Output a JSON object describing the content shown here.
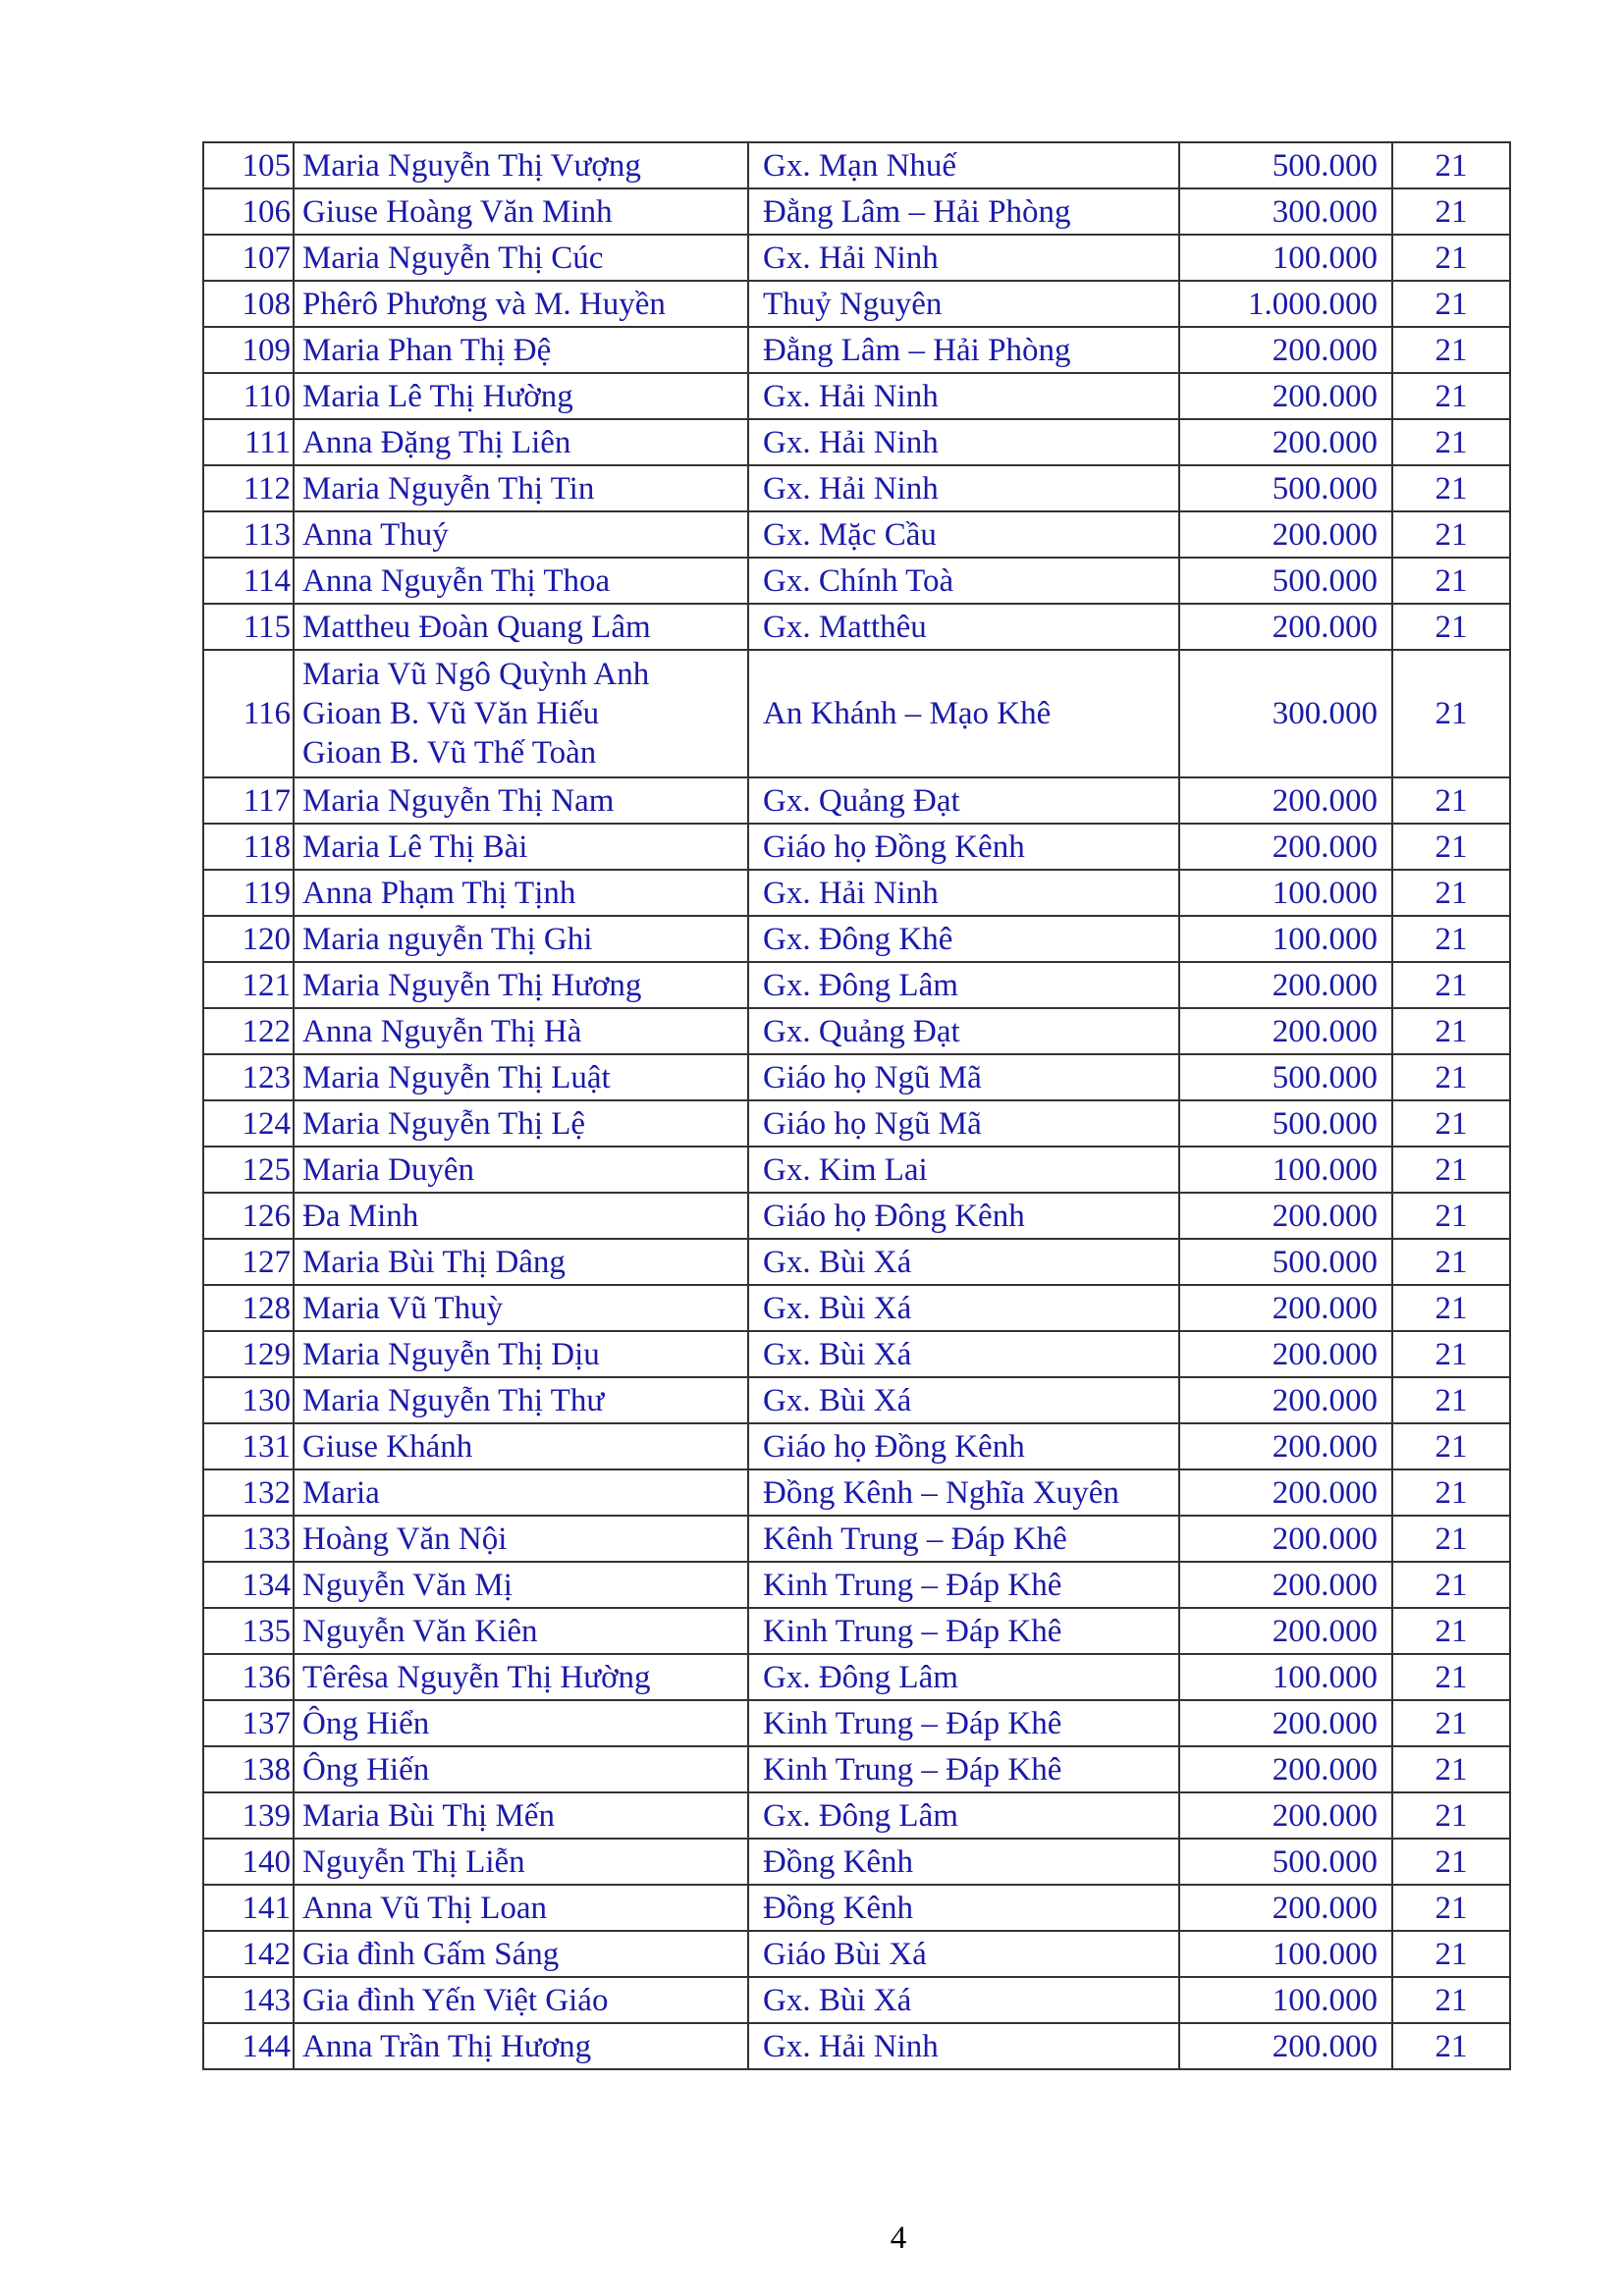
{
  "rows": [
    {
      "no": "105",
      "name": [
        "Maria Nguyễn Thị Vượng"
      ],
      "place": "Gx. Mạn Nhuế",
      "amount": "500.000",
      "count": "21"
    },
    {
      "no": "106",
      "name": [
        "Giuse Hoàng Văn Minh"
      ],
      "place": "Đằng Lâm – Hải Phòng",
      "amount": "300.000",
      "count": "21"
    },
    {
      "no": "107",
      "name": [
        "Maria Nguyễn Thị Cúc"
      ],
      "place": "Gx. Hải Ninh",
      "amount": "100.000",
      "count": "21"
    },
    {
      "no": "108",
      "name": [
        "Phêrô Phương và M. Huyền"
      ],
      "place": "Thuỷ Nguyên",
      "amount": "1.000.000",
      "count": "21"
    },
    {
      "no": "109",
      "name": [
        "Maria Phan Thị Đệ"
      ],
      "place": "Đằng Lâm – Hải Phòng",
      "amount": "200.000",
      "count": "21"
    },
    {
      "no": "110",
      "name": [
        "Maria Lê Thị Hường"
      ],
      "place": "Gx. Hải Ninh",
      "amount": "200.000",
      "count": "21"
    },
    {
      "no": "111",
      "name": [
        "Anna Đặng Thị Liên"
      ],
      "place": "Gx. Hải Ninh",
      "amount": "200.000",
      "count": "21"
    },
    {
      "no": "112",
      "name": [
        "Maria Nguyễn Thị Tin"
      ],
      "place": "Gx. Hải Ninh",
      "amount": "500.000",
      "count": "21"
    },
    {
      "no": "113",
      "name": [
        "Anna Thuý"
      ],
      "place": "Gx. Mặc Cầu",
      "amount": "200.000",
      "count": "21"
    },
    {
      "no": "114",
      "name": [
        "Anna Nguyễn Thị Thoa"
      ],
      "place": "Gx. Chính Toà",
      "amount": "500.000",
      "count": "21"
    },
    {
      "no": "115",
      "name": [
        "Mattheu Đoàn Quang Lâm"
      ],
      "place": "Gx. Matthêu",
      "amount": "200.000",
      "count": "21"
    },
    {
      "no": "116",
      "name": [
        "Maria Vũ Ngô Quỳnh Anh",
        "Gioan B. Vũ Văn Hiếu",
        "Gioan B. Vũ Thế Toàn"
      ],
      "place": "An Khánh – Mạo Khê",
      "amount": "300.000",
      "count": "21"
    },
    {
      "no": "117",
      "name": [
        "Maria Nguyễn Thị Nam"
      ],
      "place": "Gx. Quảng Đạt",
      "amount": "200.000",
      "count": "21"
    },
    {
      "no": "118",
      "name": [
        "Maria Lê Thị Bài"
      ],
      "place": "Giáo họ Đồng Kênh",
      "amount": "200.000",
      "count": "21"
    },
    {
      "no": "119",
      "name": [
        "Anna Phạm Thị Tịnh"
      ],
      "place": "Gx. Hải Ninh",
      "amount": "100.000",
      "count": "21"
    },
    {
      "no": "120",
      "name": [
        "Maria nguyễn Thị Ghi"
      ],
      "place": "Gx. Đông Khê",
      "amount": "100.000",
      "count": "21"
    },
    {
      "no": "121",
      "name": [
        "Maria Nguyễn Thị Hương"
      ],
      "place": "Gx. Đông Lâm",
      "amount": "200.000",
      "count": "21"
    },
    {
      "no": "122",
      "name": [
        "Anna Nguyễn Thị Hà"
      ],
      "place": "Gx. Quảng Đạt",
      "amount": "200.000",
      "count": "21"
    },
    {
      "no": "123",
      "name": [
        "Maria Nguyễn Thị Luật"
      ],
      "place": "Giáo họ Ngũ Mã",
      "amount": "500.000",
      "count": "21"
    },
    {
      "no": "124",
      "name": [
        "Maria Nguyễn Thị Lệ"
      ],
      "place": "Giáo họ Ngũ Mã",
      "amount": "500.000",
      "count": "21"
    },
    {
      "no": "125",
      "name": [
        "Maria Duyên"
      ],
      "place": "Gx. Kim Lai",
      "amount": "100.000",
      "count": "21"
    },
    {
      "no": "126",
      "name": [
        "Đa Minh"
      ],
      "place": "Giáo họ Đông Kênh",
      "amount": "200.000",
      "count": "21"
    },
    {
      "no": "127",
      "name": [
        "Maria Bùi Thị Dâng"
      ],
      "place": "Gx. Bùi Xá",
      "amount": "500.000",
      "count": "21"
    },
    {
      "no": "128",
      "name": [
        "Maria Vũ Thuỳ"
      ],
      "place": "Gx. Bùi Xá",
      "amount": "200.000",
      "count": "21"
    },
    {
      "no": "129",
      "name": [
        "Maria Nguyễn Thị Dịu"
      ],
      "place": "Gx. Bùi Xá",
      "amount": "200.000",
      "count": "21"
    },
    {
      "no": "130",
      "name": [
        "Maria Nguyễn Thị Thư"
      ],
      "place": "Gx. Bùi Xá",
      "amount": "200.000",
      "count": "21"
    },
    {
      "no": "131",
      "name": [
        "Giuse Khánh"
      ],
      "place": "Giáo họ Đồng Kênh",
      "amount": "200.000",
      "count": "21"
    },
    {
      "no": "132",
      "name": [
        "Maria"
      ],
      "place": "Đồng Kênh – Nghĩa Xuyên",
      "amount": "200.000",
      "count": "21"
    },
    {
      "no": "133",
      "name": [
        "Hoàng Văn Nội"
      ],
      "place": "Kênh Trung – Đáp Khê",
      "amount": "200.000",
      "count": "21"
    },
    {
      "no": "134",
      "name": [
        "Nguyễn Văn Mị"
      ],
      "place": "Kinh Trung – Đáp Khê",
      "amount": "200.000",
      "count": "21"
    },
    {
      "no": "135",
      "name": [
        "Nguyễn Văn Kiên"
      ],
      "place": "Kinh Trung – Đáp Khê",
      "amount": "200.000",
      "count": "21"
    },
    {
      "no": "136",
      "name": [
        "Têrêsa Nguyễn Thị Hường"
      ],
      "place": "Gx. Đông Lâm",
      "amount": "100.000",
      "count": "21"
    },
    {
      "no": "137",
      "name": [
        "Ông Hiển"
      ],
      "place": "Kinh Trung – Đáp Khê",
      "amount": "200.000",
      "count": "21"
    },
    {
      "no": "138",
      "name": [
        "Ông Hiến"
      ],
      "place": "Kinh Trung – Đáp Khê",
      "amount": "200.000",
      "count": "21"
    },
    {
      "no": "139",
      "name": [
        "Maria Bùi Thị Mến"
      ],
      "place": "Gx. Đông Lâm",
      "amount": "200.000",
      "count": "21"
    },
    {
      "no": "140",
      "name": [
        "Nguyễn Thị Liễn"
      ],
      "place": "Đồng Kênh",
      "amount": "500.000",
      "count": "21"
    },
    {
      "no": "141",
      "name": [
        "Anna Vũ Thị Loan"
      ],
      "place": "Đồng Kênh",
      "amount": "200.000",
      "count": "21"
    },
    {
      "no": "142",
      "name": [
        "Gia đình Gấm Sáng"
      ],
      "place": "Giáo Bùi Xá",
      "amount": "100.000",
      "count": "21"
    },
    {
      "no": "143",
      "name": [
        "Gia đình Yến Việt Giáo"
      ],
      "place": "Gx. Bùi Xá",
      "amount": "100.000",
      "count": "21"
    },
    {
      "no": "144",
      "name": [
        "Anna Trần Thị Hương"
      ],
      "place": "Gx. Hải Ninh",
      "amount": "200.000",
      "count": "21"
    }
  ],
  "page_number": "4",
  "text_color": "#1a1aa8"
}
